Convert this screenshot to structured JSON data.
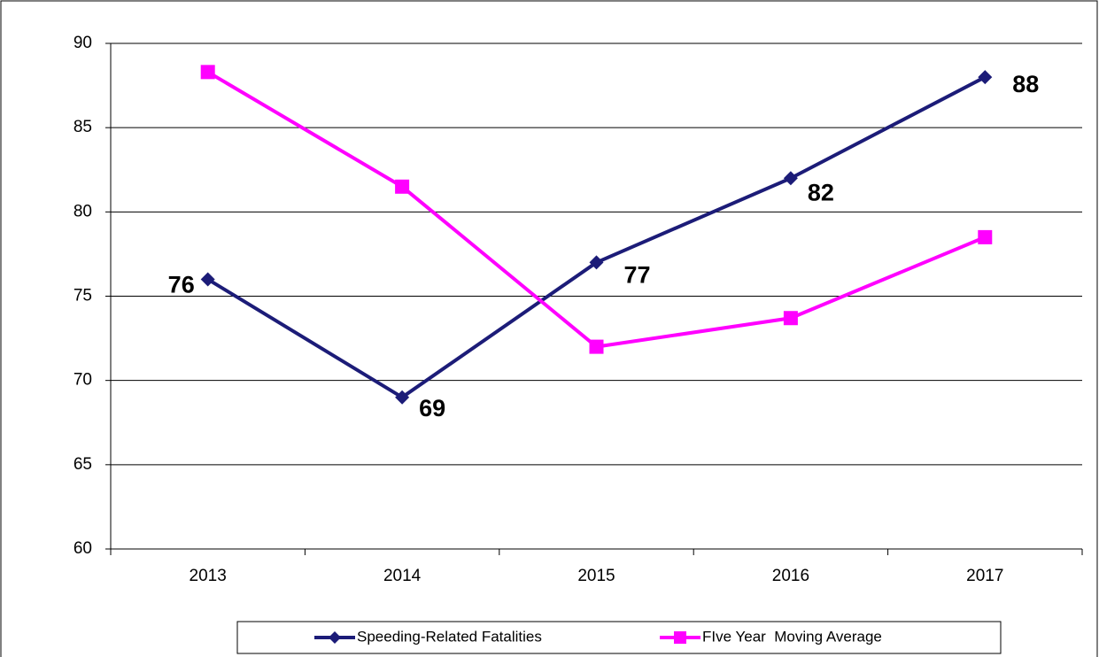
{
  "chart_data": {
    "type": "line",
    "categories": [
      "2013",
      "2014",
      "2015",
      "2016",
      "2017"
    ],
    "series": [
      {
        "name": "Speeding-Related Fatalities",
        "color": "#1c1c78",
        "marker": "diamond",
        "values": [
          76,
          69,
          77,
          82,
          88
        ],
        "data_labels": true
      },
      {
        "name": "FIve Year  Moving Average",
        "color": "#ff00ff",
        "marker": "square",
        "values": [
          88.3,
          81.5,
          72.0,
          73.7,
          78.5
        ]
      }
    ],
    "ylim": [
      60,
      90
    ],
    "yticks": [
      60,
      65,
      70,
      75,
      80,
      85,
      90
    ],
    "grid": true,
    "legend": "bottom"
  }
}
